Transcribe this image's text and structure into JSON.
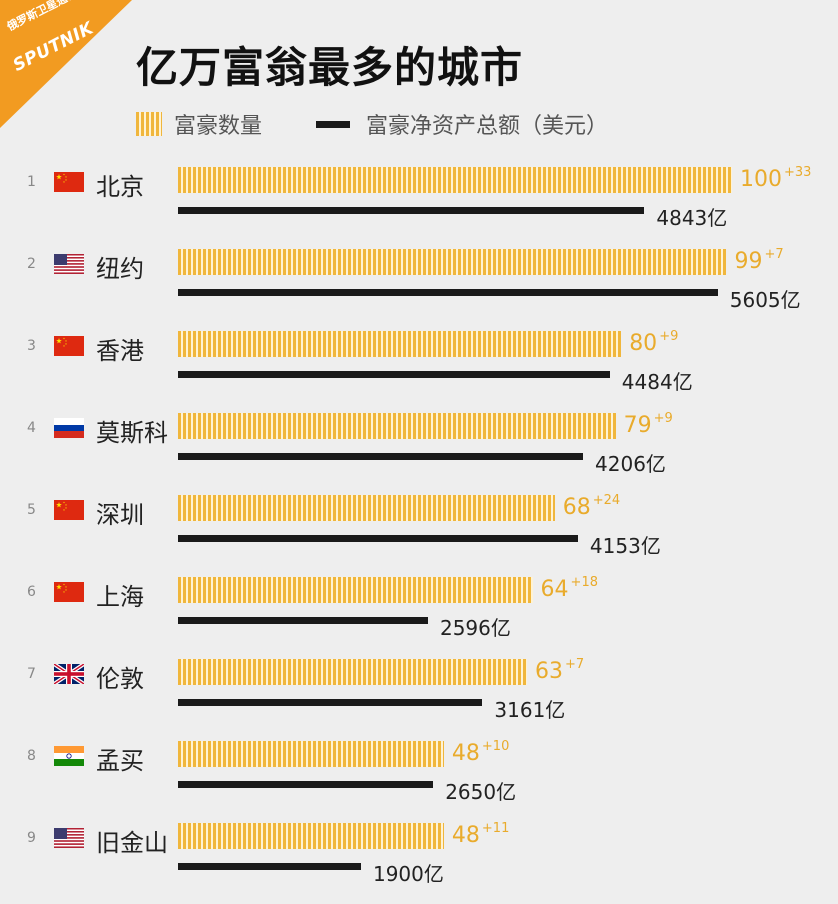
{
  "source": {
    "name_cn": "俄罗斯卫星通讯社",
    "name_en": "SPUTNIK"
  },
  "chart_data": {
    "type": "bar",
    "title": "亿万富翁最多的城市",
    "legend": [
      {
        "label": "富豪数量",
        "color": "#f0b63c"
      },
      {
        "label": "富豪净资产总额（美元）",
        "color": "#1a1a1a"
      }
    ],
    "rows": [
      {
        "rank": "1",
        "city": "北京",
        "flag": "cn",
        "count": 100,
        "count_label": "100",
        "delta": "+33",
        "worth": 4843,
        "worth_label": "4843亿"
      },
      {
        "rank": "2",
        "city": "纽约",
        "flag": "us",
        "count": 99,
        "count_label": "99",
        "delta": "+7",
        "worth": 5605,
        "worth_label": "5605亿"
      },
      {
        "rank": "3",
        "city": "香港",
        "flag": "cn",
        "count": 80,
        "count_label": "80",
        "delta": "+9",
        "worth": 4484,
        "worth_label": "4484亿"
      },
      {
        "rank": "4",
        "city": "莫斯科",
        "flag": "ru",
        "count": 79,
        "count_label": "79",
        "delta": "+9",
        "worth": 4206,
        "worth_label": "4206亿"
      },
      {
        "rank": "5",
        "city": "深圳",
        "flag": "cn",
        "count": 68,
        "count_label": "68",
        "delta": "+24",
        "worth": 4153,
        "worth_label": "4153亿"
      },
      {
        "rank": "6",
        "city": "上海",
        "flag": "cn",
        "count": 64,
        "count_label": "64",
        "delta": "+18",
        "worth": 2596,
        "worth_label": "2596亿"
      },
      {
        "rank": "7",
        "city": "伦敦",
        "flag": "uk",
        "count": 63,
        "count_label": "63",
        "delta": "+7",
        "worth": 3161,
        "worth_label": "3161亿"
      },
      {
        "rank": "8",
        "city": "孟买",
        "flag": "in",
        "count": 48,
        "count_label": "48",
        "delta": "+10",
        "worth": 2650,
        "worth_label": "2650亿"
      },
      {
        "rank": "9",
        "city": "旧金山",
        "flag": "us",
        "count": 48,
        "count_label": "48",
        "delta": "+11",
        "worth": 1900,
        "worth_label": "1900亿"
      }
    ]
  }
}
